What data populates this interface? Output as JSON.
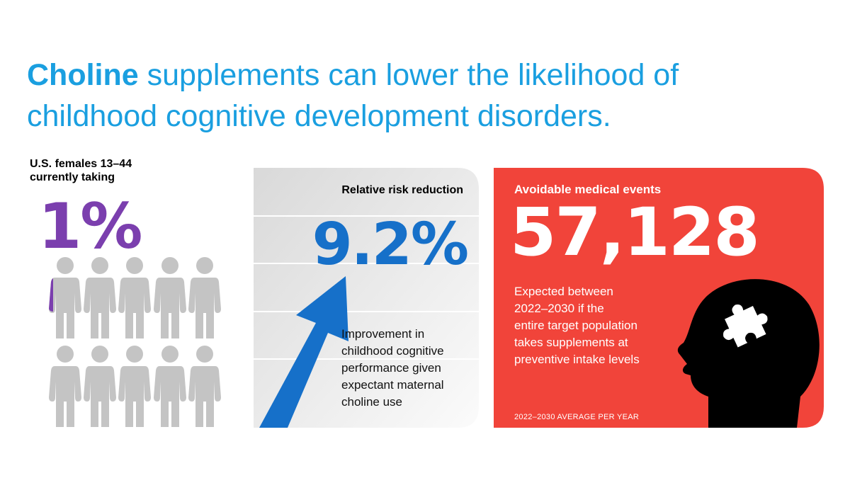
{
  "title": {
    "highlight": "Choline",
    "line1": "supplements can lower the likelihood of",
    "line2": "childhood cognitive development disorders."
  },
  "population": {
    "label_lines": [
      "U.S. females 13–44",
      "currently taking"
    ],
    "stat": "1%"
  },
  "risk": {
    "label": "Relative risk reduction",
    "stat": "9.2%",
    "description_lines": [
      "Improvement in",
      "childhood cognitive",
      "performance given",
      "expectant maternal",
      "choline use"
    ]
  },
  "events": {
    "label": "Avoidable medical events",
    "stat": "57,128",
    "description_lines": [
      "Expected between",
      "2022–2030 if the",
      "entire target population",
      "takes supplements at",
      "preventive intake levels"
    ],
    "footnote": "2022–2030 AVERAGE PER YEAR"
  }
}
